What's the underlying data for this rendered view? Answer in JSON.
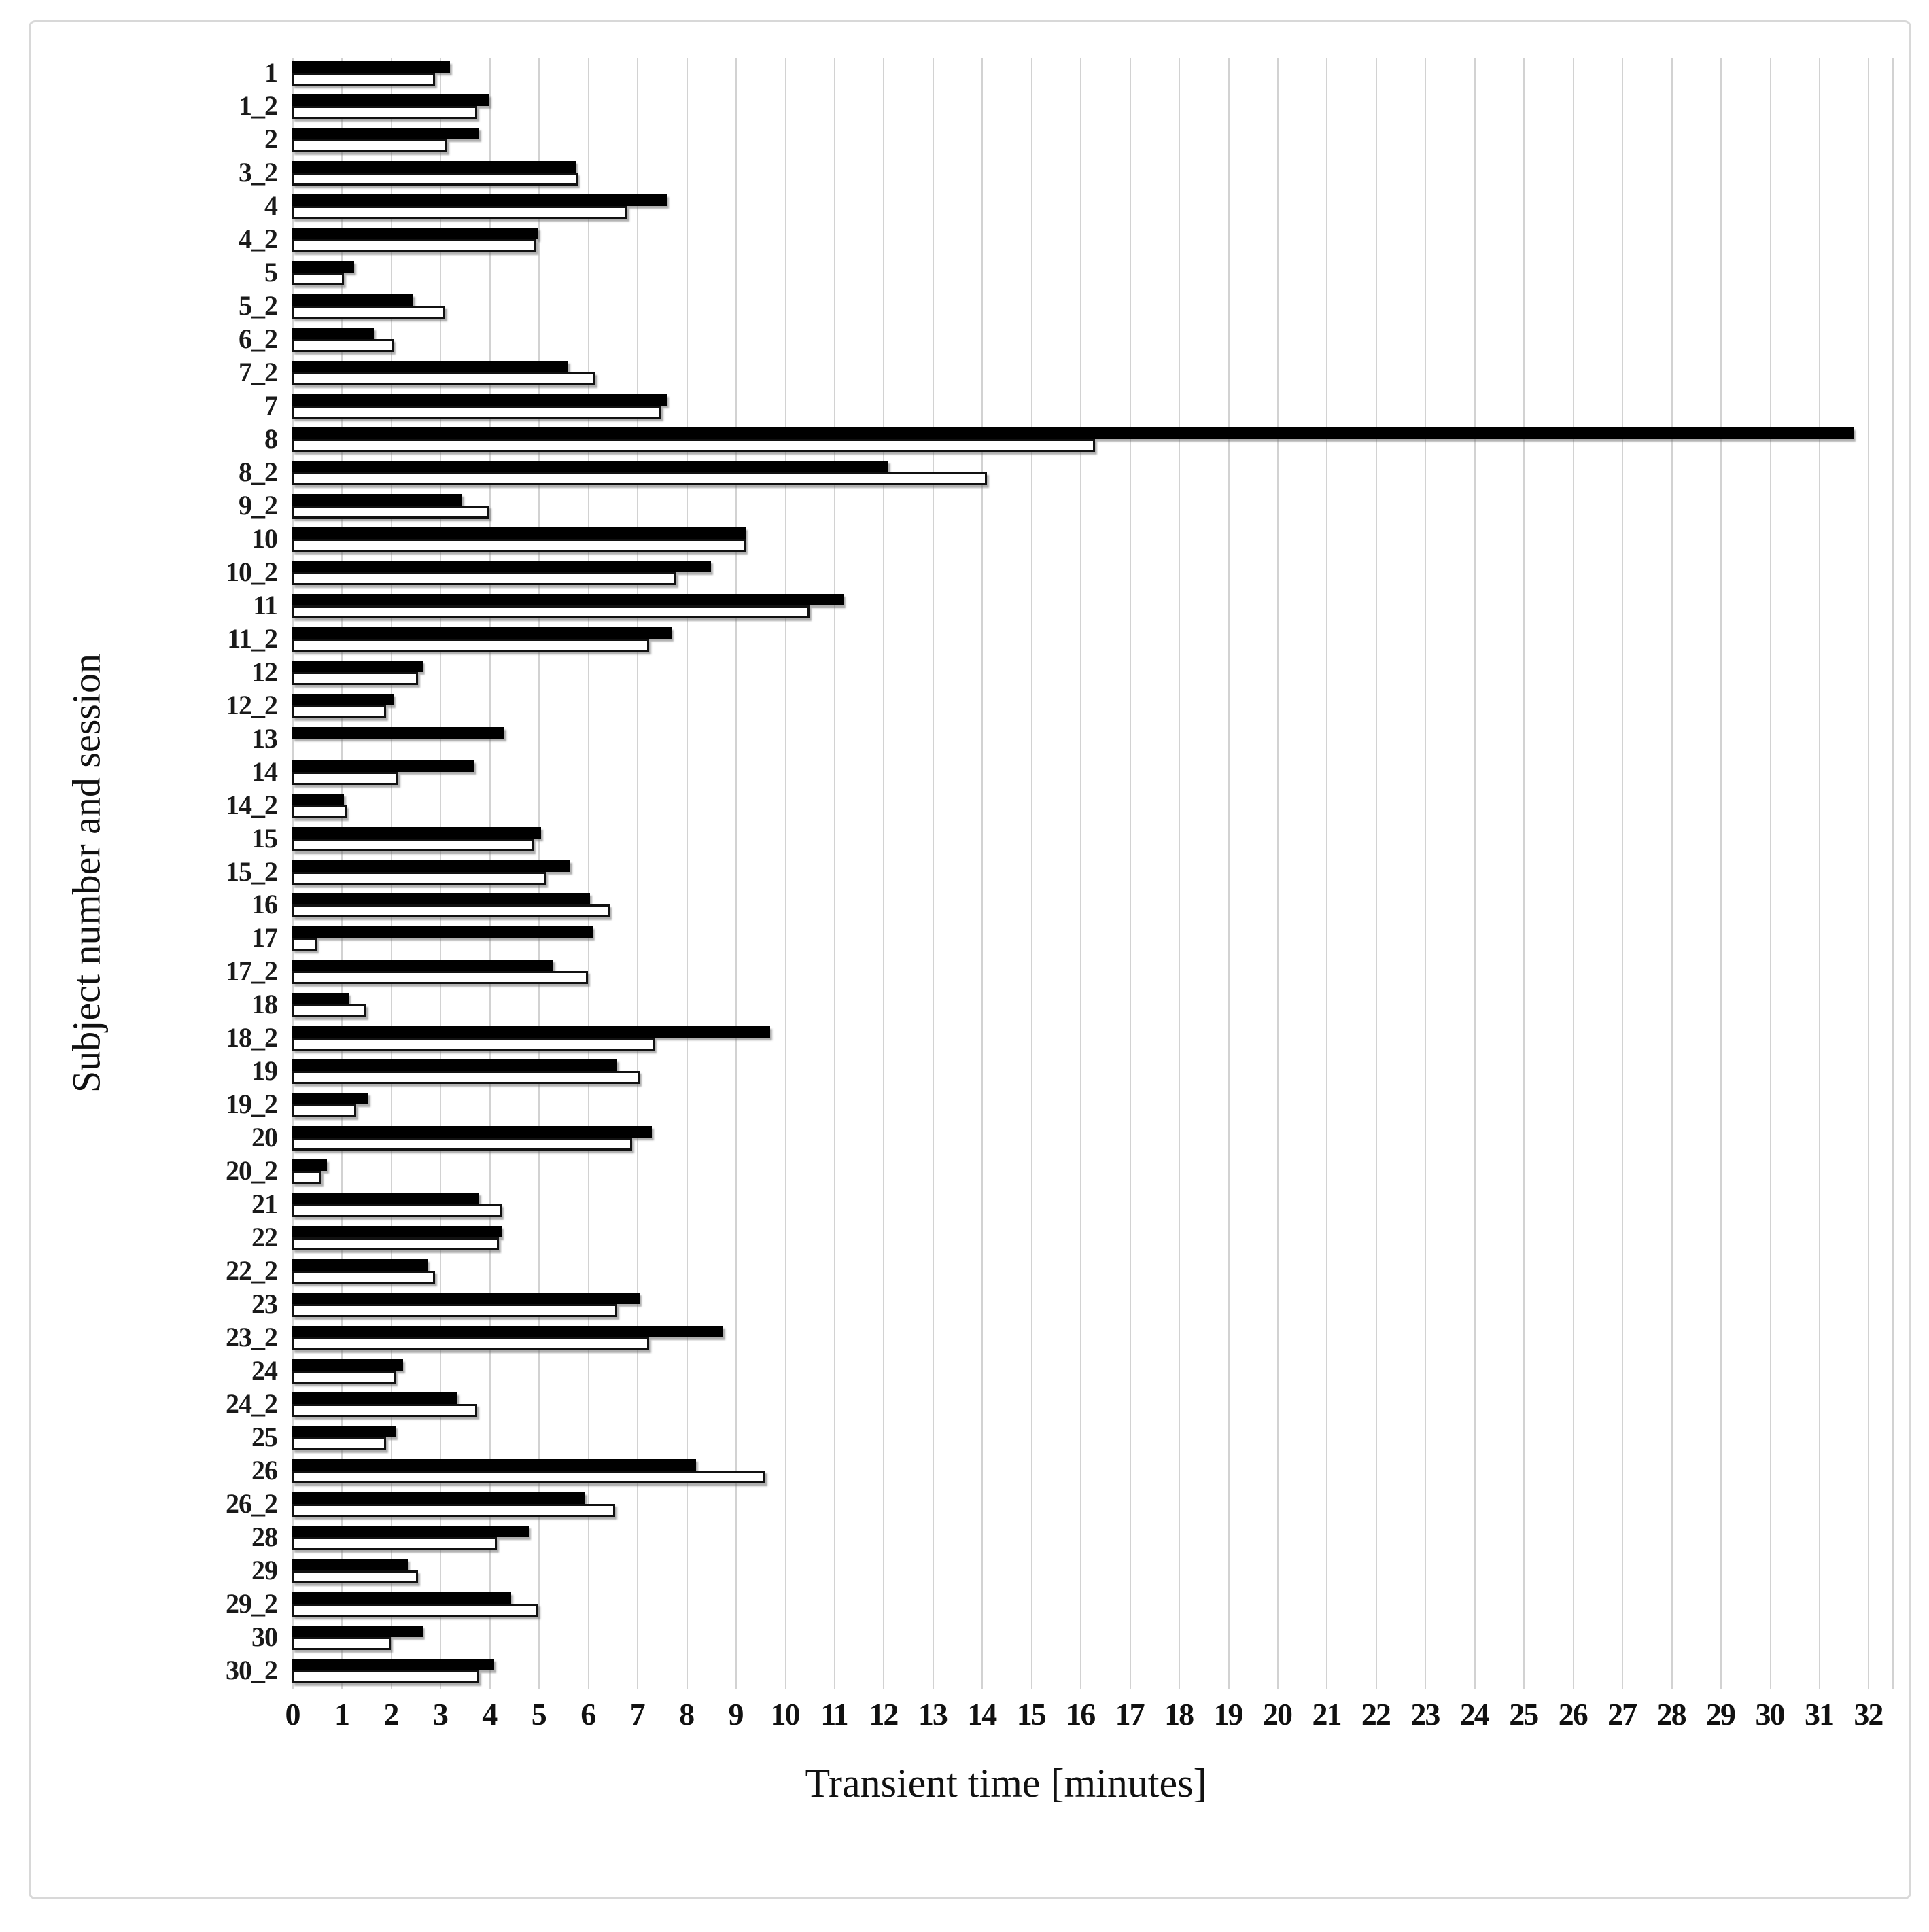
{
  "figure": {
    "background_color": "#ffffff",
    "border_color": "#d8d8d8",
    "gridline_color": "#d2d2d2",
    "bar_fill_color": "#000000",
    "bar_outline_color": "#111111"
  },
  "chart_data": {
    "type": "bar",
    "orientation": "horizontal",
    "title": "",
    "xlabel": "Transient time [minutes]",
    "ylabel": "Subject number and session",
    "xlim": [
      0,
      32
    ],
    "xticks": [
      0,
      1,
      2,
      3,
      4,
      5,
      6,
      7,
      8,
      9,
      10,
      11,
      12,
      13,
      14,
      15,
      16,
      17,
      18,
      19,
      20,
      21,
      22,
      23,
      24,
      25,
      26,
      27,
      28,
      29,
      30,
      31,
      32
    ],
    "grid": true,
    "legend": "none",
    "categories": [
      "1",
      "1_2",
      "2",
      "3_2",
      "4",
      "4_2",
      "5",
      "5_2",
      "6_2",
      "7_2",
      "7",
      "8",
      "8_2",
      "9_2",
      "10",
      "10_2",
      "11",
      "11_2",
      "12",
      "12_2",
      "13",
      "14",
      "14_2",
      "15",
      "15_2",
      "16",
      "17",
      "17_2",
      "18",
      "18_2",
      "19",
      "19_2",
      "20",
      "20_2",
      "21",
      "22",
      "22_2",
      "23",
      "23_2",
      "24",
      "24_2",
      "25",
      "26",
      "26_2",
      "28",
      "29",
      "29_2",
      "30",
      "30_2"
    ],
    "series": [
      {
        "name": "black-bars",
        "color": "#000000",
        "values": [
          3.2,
          4.0,
          3.8,
          5.75,
          7.6,
          5.0,
          1.25,
          2.45,
          1.65,
          5.6,
          7.6,
          31.7,
          12.1,
          3.45,
          9.2,
          8.5,
          11.2,
          7.7,
          2.65,
          2.05,
          4.3,
          3.7,
          1.05,
          5.05,
          5.65,
          6.05,
          6.1,
          5.3,
          1.15,
          9.7,
          6.6,
          1.55,
          7.3,
          0.7,
          3.8,
          4.25,
          2.75,
          7.05,
          8.75,
          2.25,
          3.35,
          2.1,
          8.2,
          5.95,
          4.8,
          2.35,
          4.45,
          2.65,
          4.1
        ]
      },
      {
        "name": "white-bars",
        "color": "#ffffff",
        "values": [
          2.9,
          3.75,
          3.15,
          5.8,
          6.8,
          4.95,
          1.05,
          3.1,
          2.05,
          6.15,
          7.5,
          16.3,
          14.1,
          4.0,
          9.2,
          7.8,
          10.5,
          7.25,
          2.55,
          1.9,
          0,
          2.15,
          1.1,
          4.9,
          5.15,
          6.45,
          0.5,
          6.0,
          1.5,
          7.35,
          7.05,
          1.3,
          6.9,
          0.6,
          4.25,
          4.2,
          2.9,
          6.6,
          7.25,
          2.1,
          3.75,
          1.9,
          9.6,
          6.55,
          4.15,
          2.55,
          5.0,
          2.0,
          3.8
        ]
      }
    ]
  }
}
